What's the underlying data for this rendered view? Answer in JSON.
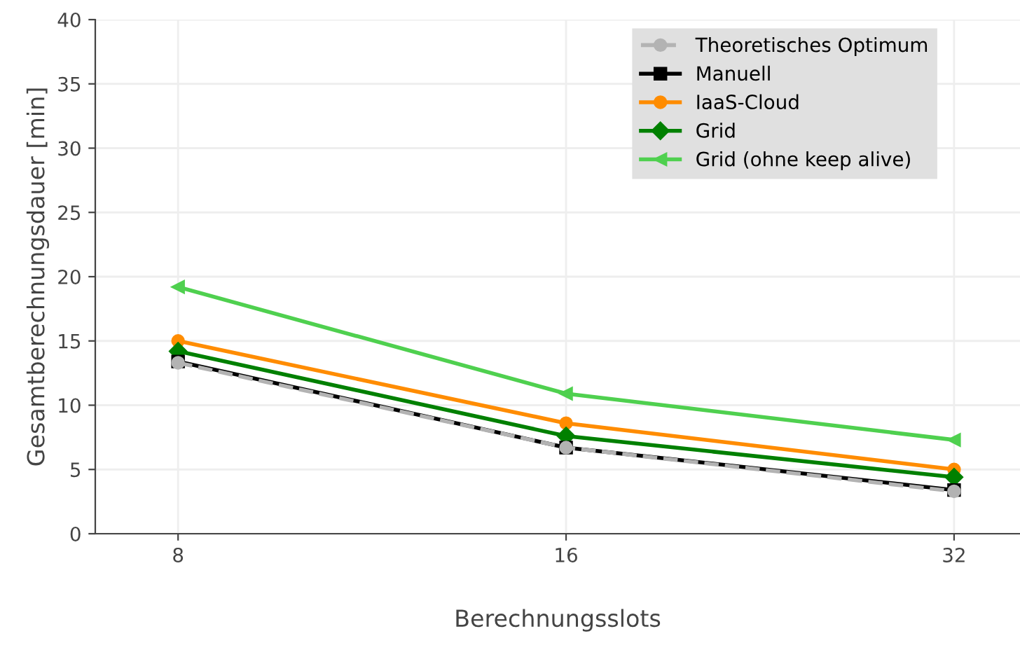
{
  "chart_data": {
    "type": "line",
    "xlabel": "Berechnungsslots",
    "ylabel": "Gesamtberechnungsdauer [min]",
    "x": [
      8,
      16,
      32
    ],
    "log": "x",
    "xlim": [
      6.9,
      36
    ],
    "xticks": [
      8,
      16,
      32
    ],
    "series": [
      {
        "name": "Theoretisches Optimum",
        "color": "#b3b3b3",
        "values": [
          13.3,
          6.7,
          3.3
        ],
        "marker": "circle",
        "line_style": "dashed"
      },
      {
        "name": "Manuell",
        "color": "#000000",
        "values": [
          13.4,
          6.7,
          3.4
        ],
        "marker": "square",
        "line_style": "solid"
      },
      {
        "name": "IaaS-Cloud",
        "color": "#ff8c00",
        "values": [
          15.0,
          8.6,
          5.0
        ],
        "marker": "circle",
        "line_style": "solid"
      },
      {
        "name": "Grid",
        "color": "#008000",
        "values": [
          14.2,
          7.6,
          4.4
        ],
        "marker": "diamond",
        "line_style": "solid"
      },
      {
        "name": "Grid (ohne keep alive)",
        "color": "#4fd04f",
        "values": [
          19.2,
          10.9,
          7.3
        ],
        "marker": "triangle",
        "line_style": "solid"
      }
    ],
    "ylim": [
      0,
      40
    ],
    "yticks": [
      0,
      5,
      10,
      15,
      20,
      25,
      30,
      35,
      40
    ],
    "grid": true,
    "legend": "top right"
  }
}
